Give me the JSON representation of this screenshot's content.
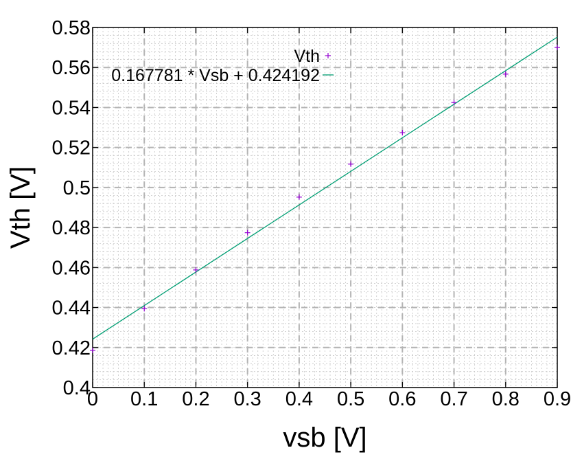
{
  "chart_data": {
    "type": "scatter",
    "xlabel": "vsb [V]",
    "ylabel": "Vth [V]",
    "xlim": [
      0,
      0.9
    ],
    "ylim": [
      0.4,
      0.58
    ],
    "x_ticks": [
      0,
      0.1,
      0.2,
      0.3,
      0.4,
      0.5,
      0.6,
      0.7,
      0.8,
      0.9
    ],
    "x_tick_labels": [
      "0",
      "0.1",
      "0.2",
      "0.3",
      "0.4",
      "0.5",
      "0.6",
      "0.7",
      "0.8",
      "0.9"
    ],
    "y_ticks": [
      0.4,
      0.42,
      0.44,
      0.46,
      0.48,
      0.5,
      0.52,
      0.54,
      0.56,
      0.58
    ],
    "y_tick_labels": [
      "0.4",
      "0.42",
      "0.44",
      "0.46",
      "0.48",
      "0.5",
      "0.52",
      "0.54",
      "0.56",
      "0.58"
    ],
    "grid": true,
    "legend_position": "top-center",
    "series": [
      {
        "name": "Vth",
        "type": "scatter",
        "marker": "+",
        "color": "#9400D3",
        "x": [
          0,
          0.1,
          0.2,
          0.3,
          0.4,
          0.5,
          0.6,
          0.7,
          0.8,
          0.9
        ],
        "y": [
          0.4186,
          0.4394,
          0.4588,
          0.4774,
          0.4952,
          0.5117,
          0.5274,
          0.5425,
          0.5567,
          0.57
        ]
      },
      {
        "name": "0.167781 * Vsb + 0.424192",
        "type": "line",
        "color": "#009E73",
        "slope": 0.167781,
        "intercept": 0.424192
      }
    ]
  }
}
